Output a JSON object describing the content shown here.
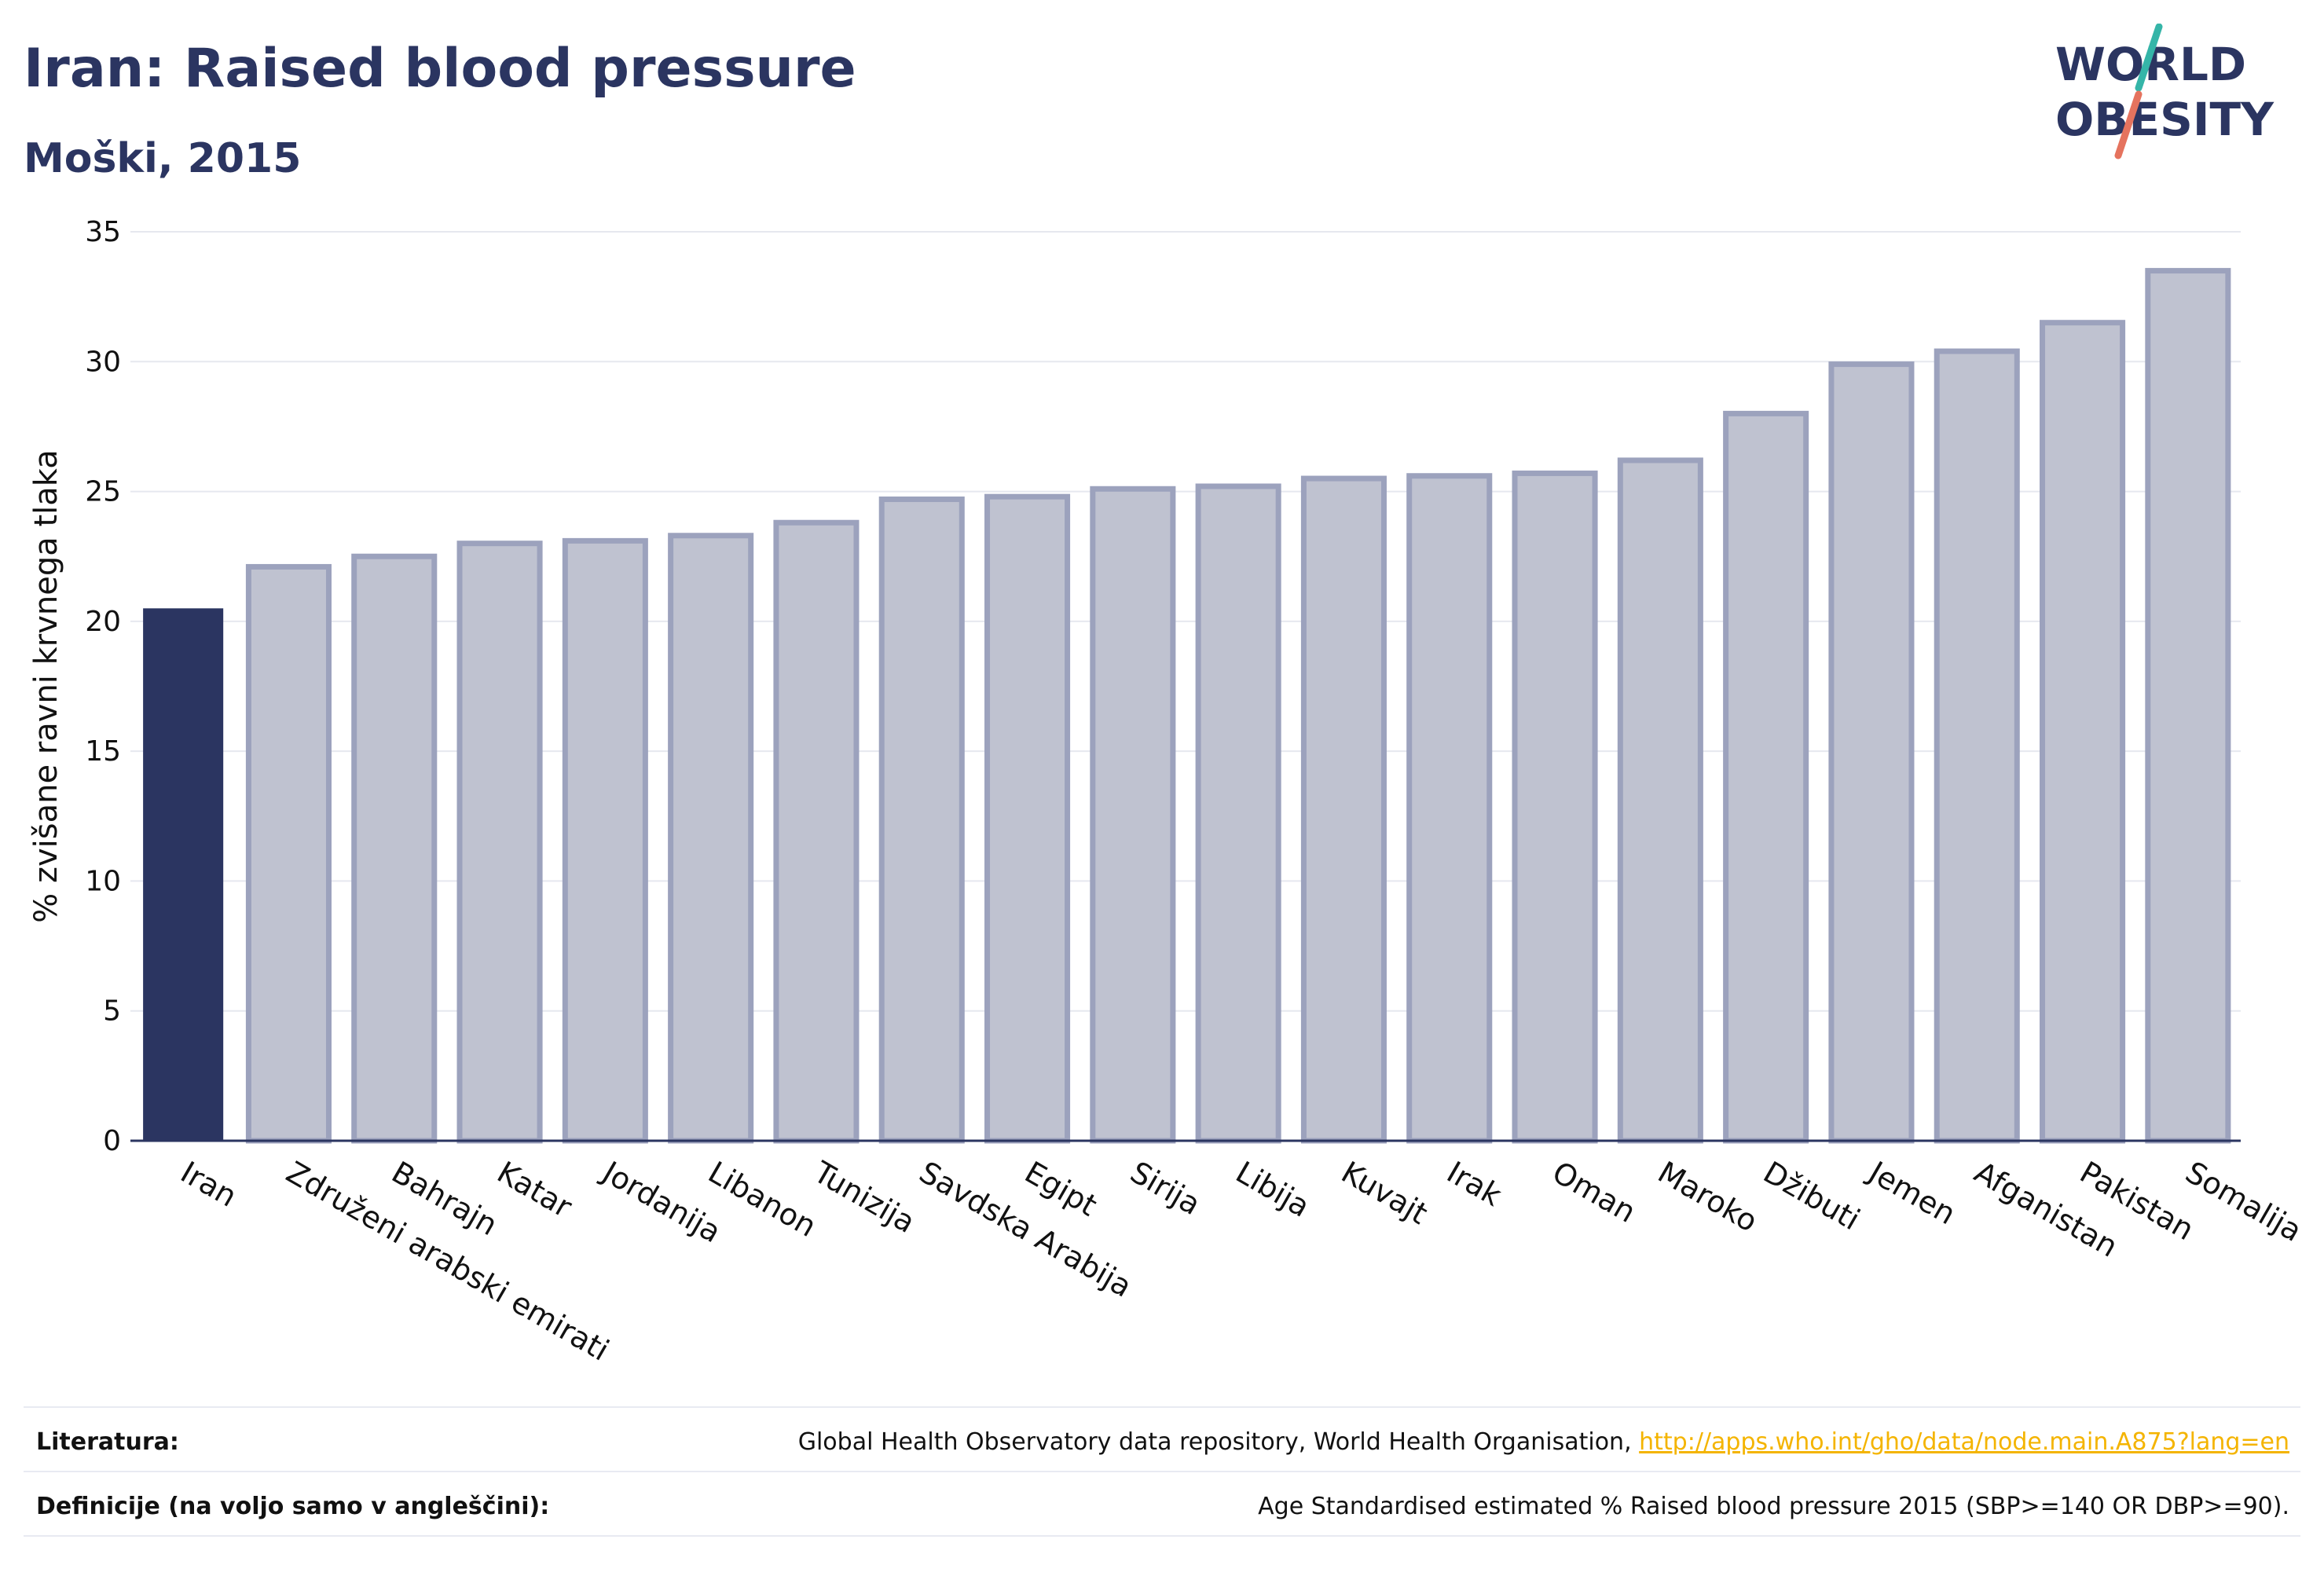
{
  "header": {
    "title": "Iran: Raised blood pressure",
    "subtitle": "Moški, 2015"
  },
  "logo": {
    "line1": "WORLD",
    "line2": "OBESITY"
  },
  "chart_data": {
    "type": "bar",
    "title": "Iran: Raised blood pressure",
    "subtitle": "Moški, 2015",
    "xlabel": "",
    "ylabel": "% zvišane ravni krvnega tlaka",
    "ylim": [
      0,
      35
    ],
    "yticks": [
      0,
      5,
      10,
      15,
      20,
      25,
      30,
      35
    ],
    "grid": true,
    "categories": [
      "Iran",
      "Združeni arabski emirati",
      "Bahrajn",
      "Katar",
      "Jordanija",
      "Libanon",
      "Tunizija",
      "Savdska Arabija",
      "Egipt",
      "Sirija",
      "Libija",
      "Kuvajt",
      "Irak",
      "Oman",
      "Maroko",
      "Džibuti",
      "Jemen",
      "Afganistan",
      "Pakistan",
      "Somalija"
    ],
    "values": [
      20.5,
      22.1,
      22.5,
      23.0,
      23.1,
      23.3,
      23.8,
      24.7,
      24.8,
      25.1,
      25.2,
      25.5,
      25.6,
      25.7,
      26.2,
      28.0,
      29.9,
      30.4,
      31.5,
      33.5
    ],
    "highlight_index": 0,
    "colors": {
      "highlight": "#2b3561",
      "other_fill": "#bfc2d0",
      "other_stroke": "#9ca2bd",
      "grid": "#e6e8ef",
      "axis": "#2b3561"
    }
  },
  "footer": {
    "literature_label": "Literatura:",
    "literature_text": "Global Health Observatory data repository, World Health Organisation, ",
    "literature_link": "http://apps.who.int/gho/data/node.main.A875?lang=en",
    "definitions_label": "Definicije (na voljo samo v angleščini):",
    "definitions_text": "Age Standardised estimated % Raised blood pressure 2015 (SBP>=140 OR DBP>=90)."
  }
}
